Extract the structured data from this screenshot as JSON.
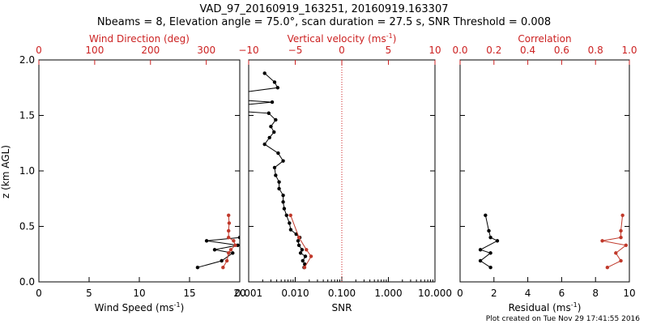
{
  "title_line1": "VAD_97_20160919_163251, 20160919.163307",
  "title_line2": "Nbeams = 8, Elevation angle = 75.0°, scan duration = 27.5 s, SNR Threshold = 0.008",
  "footer": "Plot created on Tue Nov 29 17:41:55 2016",
  "colors": {
    "axis": "#000000",
    "accent": "#cc2222",
    "series_black": "#000000",
    "series_red": "#c0392b"
  },
  "chart_data": [
    {
      "type": "line",
      "name": "wind",
      "ylabel": "z (km AGL)",
      "ylim": [
        0,
        2
      ],
      "y_ticks": [
        "0.0",
        "0.5",
        "1.0",
        "1.5",
        "2.0"
      ],
      "y_tick_values": [
        0,
        0.5,
        1.0,
        1.5,
        2.0
      ],
      "bottom_axis": {
        "label": "Wind Speed (ms",
        "label_sup": "-1",
        "label_end": ")",
        "range": [
          0,
          20
        ],
        "ticks": [
          "0",
          "5",
          "10",
          "15",
          "20"
        ],
        "tick_values": [
          0,
          5,
          10,
          15,
          20
        ]
      },
      "top_axis": {
        "label": "Wind Direction (deg)",
        "range": [
          0,
          360
        ],
        "ticks": [
          "0",
          "100",
          "200",
          "300"
        ],
        "tick_values": [
          0,
          100,
          200,
          300
        ]
      },
      "series": [
        {
          "axis": "bottom",
          "color": "black",
          "points": [
            [
              15.8,
              0.13
            ],
            [
              18.2,
              0.19
            ],
            [
              19.3,
              0.26
            ],
            [
              17.5,
              0.29
            ],
            [
              19.8,
              0.33
            ],
            [
              16.7,
              0.37
            ],
            [
              20.0,
              0.4
            ]
          ]
        },
        {
          "axis": "top",
          "color": "red",
          "points": [
            [
              330,
              0.13
            ],
            [
              337,
              0.19
            ],
            [
              340,
              0.26
            ],
            [
              344,
              0.29
            ],
            [
              352,
              0.33
            ],
            [
              349,
              0.37
            ],
            [
              340,
              0.4
            ],
            [
              340,
              0.46
            ],
            [
              341,
              0.53
            ],
            [
              340,
              0.6
            ]
          ]
        }
      ]
    },
    {
      "type": "line",
      "name": "snr",
      "bottom_axis": {
        "label": "SNR",
        "scale": "log",
        "range": [
          0.001,
          10
        ],
        "ticks": [
          "0.001",
          "0.010",
          "0.100",
          "1.000",
          "10.000"
        ],
        "tick_values": [
          0.001,
          0.01,
          0.1,
          1,
          10
        ]
      },
      "top_axis": {
        "label": "Vertical velocity (ms",
        "label_sup": "-1",
        "label_end": ")",
        "range": [
          -10,
          10
        ],
        "ticks": [
          "−10",
          "−5",
          "0",
          "5",
          "10"
        ],
        "tick_values": [
          -10,
          -5,
          0,
          5,
          10
        ]
      },
      "reference_line": {
        "axis": "top",
        "value": 0
      },
      "series": [
        {
          "axis": "bottom",
          "color": "black",
          "points": [
            [
              0.0155,
              0.13
            ],
            [
              0.016,
              0.16
            ],
            [
              0.0145,
              0.19
            ],
            [
              0.0165,
              0.23
            ],
            [
              0.013,
              0.26
            ],
            [
              0.014,
              0.29
            ],
            [
              0.012,
              0.33
            ],
            [
              0.0115,
              0.37
            ],
            [
              0.0125,
              0.4
            ],
            [
              0.0105,
              0.43
            ],
            [
              0.008,
              0.47
            ],
            [
              0.0075,
              0.53
            ],
            [
              0.0065,
              0.6
            ],
            [
              0.0058,
              0.66
            ],
            [
              0.0055,
              0.72
            ],
            [
              0.0055,
              0.78
            ],
            [
              0.0045,
              0.84
            ],
            [
              0.0045,
              0.9
            ],
            [
              0.0038,
              0.96
            ],
            [
              0.0036,
              1.03
            ],
            [
              0.0055,
              1.09
            ],
            [
              0.0043,
              1.16
            ],
            [
              0.0022,
              1.24
            ],
            [
              0.0028,
              1.3
            ],
            [
              0.0035,
              1.35
            ],
            [
              0.003,
              1.4
            ],
            [
              0.0038,
              1.46
            ],
            [
              0.0027,
              1.52
            ],
            [
              0.0001,
              1.56
            ],
            [
              0.0032,
              1.62
            ],
            [
              0.0001,
              1.66
            ],
            [
              0.0042,
              1.75
            ],
            [
              0.0036,
              1.8
            ],
            [
              0.0022,
              1.88
            ]
          ]
        },
        {
          "axis": "top",
          "color": "red",
          "points": [
            [
              -4.0,
              0.13
            ],
            [
              -3.3,
              0.23
            ],
            [
              -3.8,
              0.29
            ],
            [
              -4.6,
              0.4
            ],
            [
              -5.5,
              0.6
            ]
          ]
        }
      ]
    },
    {
      "type": "line",
      "name": "residual",
      "bottom_axis": {
        "label": "Residual (ms",
        "label_sup": "-1",
        "label_end": ")",
        "range": [
          0,
          10
        ],
        "ticks": [
          "0",
          "2",
          "4",
          "6",
          "8",
          "10"
        ],
        "tick_values": [
          0,
          2,
          4,
          6,
          8,
          10
        ]
      },
      "top_axis": {
        "label": "Correlation",
        "range": [
          0,
          1
        ],
        "ticks": [
          "0.0",
          "0.2",
          "0.4",
          "0.6",
          "0.8",
          "1.0"
        ],
        "tick_values": [
          0,
          0.2,
          0.4,
          0.6,
          0.8,
          1.0
        ]
      },
      "series": [
        {
          "axis": "bottom",
          "color": "black",
          "points": [
            [
              1.8,
              0.13
            ],
            [
              1.2,
              0.19
            ],
            [
              1.8,
              0.26
            ],
            [
              1.2,
              0.29
            ],
            [
              2.2,
              0.37
            ],
            [
              1.8,
              0.4
            ],
            [
              1.7,
              0.46
            ],
            [
              1.5,
              0.6
            ]
          ]
        },
        {
          "axis": "top",
          "color": "red",
          "points": [
            [
              0.87,
              0.13
            ],
            [
              0.95,
              0.19
            ],
            [
              0.92,
              0.26
            ],
            [
              0.98,
              0.33
            ],
            [
              0.84,
              0.37
            ],
            [
              0.95,
              0.4
            ],
            [
              0.95,
              0.46
            ],
            [
              0.96,
              0.6
            ]
          ]
        }
      ]
    }
  ]
}
